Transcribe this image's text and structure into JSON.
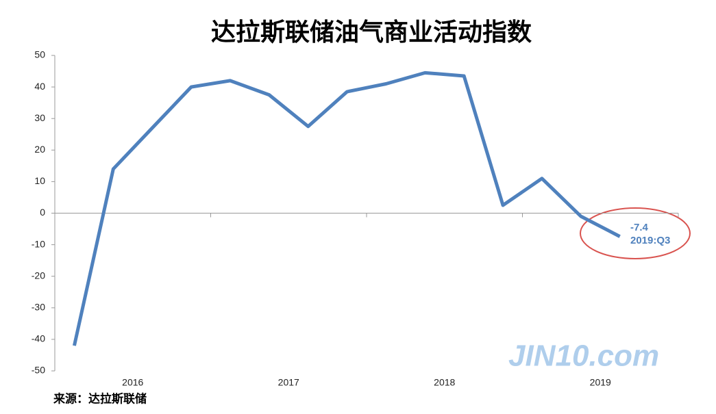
{
  "chart_data": {
    "type": "line",
    "title": "达拉斯联储油气商业活动指数",
    "categories": [
      null,
      "2016",
      null,
      null,
      null,
      "2017",
      null,
      null,
      null,
      "2018",
      null,
      null,
      null,
      "2019",
      null
    ],
    "series": [
      {
        "name": "达拉斯联储油气商业活动指数",
        "color": "#4f81bd",
        "values": [
          -42,
          14,
          27,
          40,
          42,
          37.5,
          27.5,
          38.5,
          41,
          44.5,
          43.5,
          2.5,
          11,
          -1,
          -7.4
        ]
      }
    ],
    "ylim": [
      -50,
      50
    ],
    "yticks": [
      -50,
      -40,
      -30,
      -20,
      -10,
      0,
      10,
      20,
      30,
      40,
      50
    ],
    "annotation": "2019:Q3",
    "source": "来源：达拉斯联储",
    "watermark": "JIN10.com"
  }
}
